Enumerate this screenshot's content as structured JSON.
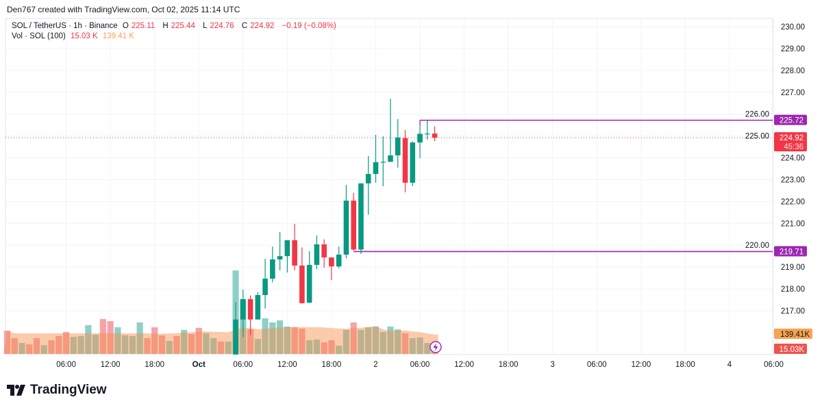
{
  "credit": "Den767 created with TradingView.com, Oct 02, 2025 11:14 UTC",
  "legend": {
    "symbol": "SOL / TetherUS · 1h · Binance",
    "o_label": "O",
    "o": "225.11",
    "h_label": "H",
    "h": "225.44",
    "l_label": "L",
    "l": "224.76",
    "c_label": "C",
    "c": "224.92",
    "change": "−0.19 (−0.08%)",
    "vol_label": "Vol · SOL (100)",
    "vol": "15.03 K",
    "vol_ma": "139.41 K"
  },
  "logo": "TradingView",
  "colors": {
    "up": "#089981",
    "down": "#F23645",
    "level": "#9C27B0",
    "vol_ma": "#F7A350"
  },
  "chart_data": {
    "type": "candlestick",
    "title": "SOL / TetherUS · 1h · Binance",
    "ylim": [
      215,
      230.5
    ],
    "price_ticks": [
      "230.00",
      "229.00",
      "228.00",
      "227.00",
      "226.00",
      "225.00",
      "224.00",
      "223.00",
      "222.00",
      "221.00",
      "220.00",
      "219.00",
      "218.00",
      "217.00"
    ],
    "time_ticks": [
      {
        "label": "06:00",
        "hour": 5
      },
      {
        "label": "12:00",
        "hour": 11
      },
      {
        "label": "18:00",
        "hour": 17
      },
      {
        "label": "Oct",
        "hour": 23,
        "bold": true
      },
      {
        "label": "06:00",
        "hour": 29
      },
      {
        "label": "12:00",
        "hour": 35
      },
      {
        "label": "18:00",
        "hour": 41
      },
      {
        "label": "2",
        "hour": 47,
        "bold": true
      },
      {
        "label": "06:00",
        "hour": 53
      },
      {
        "label": "12:00",
        "hour": 59
      },
      {
        "label": "18:00",
        "hour": 65
      },
      {
        "label": "3",
        "hour": 71,
        "bold": true
      },
      {
        "label": "06:00",
        "hour": 77
      },
      {
        "label": "12:00",
        "hour": 83
      },
      {
        "label": "18:00",
        "hour": 89
      },
      {
        "label": "4",
        "hour": 95,
        "bold": true
      },
      {
        "label": "06:00",
        "hour": 101
      }
    ],
    "volume_only_bars_k": [
      [
        158,
        "d"
      ],
      [
        107,
        "d"
      ],
      [
        74,
        "u"
      ],
      [
        65,
        "d"
      ],
      [
        107,
        "d"
      ],
      [
        60,
        "u"
      ],
      [
        93,
        "d"
      ],
      [
        121,
        "d"
      ],
      [
        149,
        "d"
      ],
      [
        116,
        "u"
      ],
      [
        121,
        "u"
      ],
      [
        195,
        "u"
      ],
      [
        130,
        "u"
      ],
      [
        237,
        "d"
      ],
      [
        223,
        "d"
      ],
      [
        181,
        "u"
      ],
      [
        126,
        "u"
      ],
      [
        121,
        "u"
      ],
      [
        214,
        "u"
      ],
      [
        107,
        "d"
      ],
      [
        181,
        "d"
      ],
      [
        126,
        "d"
      ],
      [
        88,
        "u"
      ],
      [
        121,
        "d"
      ],
      [
        163,
        "u"
      ],
      [
        135,
        "d"
      ],
      [
        177,
        "d"
      ],
      [
        140,
        "u"
      ],
      [
        107,
        "u"
      ],
      [
        84,
        "d"
      ],
      [
        84,
        "u"
      ]
    ],
    "candles_ohlcv": [
      [
        215.0,
        217.4,
        215.0,
        216.6,
        567
      ],
      [
        216.6,
        217.97,
        215.8,
        217.53,
        372
      ],
      [
        217.53,
        217.7,
        215.9,
        216.6,
        167
      ],
      [
        216.6,
        217.85,
        216.6,
        217.72,
        102
      ],
      [
        217.72,
        219.38,
        217.1,
        218.47,
        242
      ],
      [
        218.47,
        219.94,
        218.3,
        219.35,
        214
      ],
      [
        219.35,
        220.6,
        218.85,
        219.5,
        228
      ],
      [
        219.5,
        220.23,
        218.75,
        220.23,
        186
      ],
      [
        220.23,
        220.98,
        218.85,
        219.07,
        181
      ],
      [
        219.07,
        219.9,
        217.33,
        217.35,
        172
      ],
      [
        217.37,
        219.73,
        217.35,
        219.1,
        93
      ],
      [
        219.1,
        220.45,
        218.9,
        220.04,
        98
      ],
      [
        220.04,
        220.27,
        218.97,
        219.44,
        79
      ],
      [
        219.44,
        219.44,
        218.4,
        219.03,
        93
      ],
      [
        219.03,
        219.94,
        218.95,
        219.57,
        56
      ],
      [
        219.57,
        222.76,
        219.4,
        222.04,
        163
      ],
      [
        222.04,
        222.4,
        219.75,
        219.8,
        214
      ],
      [
        219.8,
        222.83,
        219.6,
        222.83,
        163
      ],
      [
        222.83,
        224.08,
        221.4,
        223.26,
        181
      ],
      [
        223.26,
        225.05,
        222.86,
        223.8,
        186
      ],
      [
        223.8,
        224.98,
        222.7,
        223.82,
        149
      ],
      [
        223.82,
        226.7,
        223.8,
        224.11,
        186
      ],
      [
        224.11,
        225.77,
        223.55,
        224.93,
        167
      ],
      [
        224.9,
        225.27,
        222.42,
        222.86,
        140
      ],
      [
        222.86,
        224.75,
        222.7,
        224.7,
        107
      ],
      [
        224.7,
        225.72,
        223.98,
        225.1,
        112
      ],
      [
        225.1,
        225.72,
        224.83,
        225.11,
        74
      ],
      [
        225.11,
        225.44,
        224.76,
        224.92,
        15.03
      ]
    ],
    "levels": [
      {
        "price": 225.72,
        "label": "225.72",
        "from_candle": 25
      },
      {
        "price": 219.71,
        "label": "219.71",
        "from_candle": 16
      }
    ],
    "last_price": {
      "label": "224.92",
      "countdown": "45:36"
    },
    "vol_labels": {
      "ma": "139.41K",
      "vol": "15.03K"
    }
  }
}
